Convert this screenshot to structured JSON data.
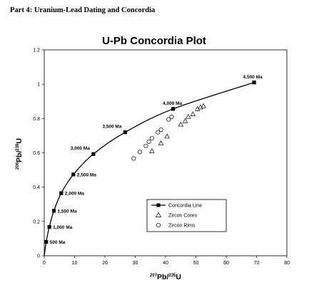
{
  "page": {
    "heading": "Part 4: Uranium-Lead Dating and Concordia"
  },
  "chart_data": {
    "type": "scatter",
    "title": "U-Pb Concordia Plot",
    "xlabel": {
      "base1": "207",
      "mid": "Pb/",
      "base2": "235",
      "end": "U"
    },
    "ylabel": {
      "base1": "206",
      "mid": "Pb/",
      "base2": "238",
      "end": "U"
    },
    "xlim": [
      0,
      80
    ],
    "ylim": [
      0,
      1.2
    ],
    "xticks": [
      "0",
      "10",
      "20",
      "30",
      "40",
      "50",
      "60",
      "70",
      "80"
    ],
    "yticks": [
      "0",
      "0.2",
      "0.4",
      "0.6",
      "0.8",
      "1",
      "1.2"
    ],
    "grid": false,
    "legend_position": "lower-right",
    "colors": {
      "line": "#000000",
      "marker": "#000000",
      "open_marker": "#555555"
    },
    "series": [
      {
        "name": "Concordia Line",
        "style": "line-square",
        "points": [
          {
            "label": "500 Ma",
            "x": 0.64,
            "y": 0.081
          },
          {
            "label": "1,000 Ma",
            "x": 1.68,
            "y": 0.168
          },
          {
            "label": "1,500 Ma",
            "x": 3.18,
            "y": 0.262
          },
          {
            "label": "2,000 Ma",
            "x": 5.6,
            "y": 0.365
          },
          {
            "label": "2,500 Ma",
            "x": 9.6,
            "y": 0.474
          },
          {
            "label": "3,000 Ma",
            "x": 16.2,
            "y": 0.593
          },
          {
            "label": "3,500 Ma",
            "x": 26.7,
            "y": 0.72
          },
          {
            "label": "4,000 Ma",
            "x": 42.5,
            "y": 0.856
          },
          {
            "label": "4,500 Ma",
            "x": 69.2,
            "y": 1.01
          }
        ]
      },
      {
        "name": "Zircon Cores",
        "style": "open-triangle",
        "points": [
          {
            "x": 35.5,
            "y": 0.61
          },
          {
            "x": 38.5,
            "y": 0.655
          },
          {
            "x": 40.5,
            "y": 0.695
          },
          {
            "x": 45.0,
            "y": 0.765
          },
          {
            "x": 46.5,
            "y": 0.785
          },
          {
            "x": 47.5,
            "y": 0.81
          },
          {
            "x": 49.0,
            "y": 0.825
          },
          {
            "x": 50.5,
            "y": 0.855
          },
          {
            "x": 51.5,
            "y": 0.865
          },
          {
            "x": 52.5,
            "y": 0.872
          }
        ]
      },
      {
        "name": "Zircon Rims",
        "style": "open-circle",
        "points": [
          {
            "x": 29.5,
            "y": 0.567
          },
          {
            "x": 31.5,
            "y": 0.605
          },
          {
            "x": 33.5,
            "y": 0.64
          },
          {
            "x": 34.5,
            "y": 0.665
          },
          {
            "x": 35.5,
            "y": 0.685
          },
          {
            "x": 37.5,
            "y": 0.72
          },
          {
            "x": 38.5,
            "y": 0.735
          },
          {
            "x": 41.0,
            "y": 0.795
          },
          {
            "x": 42.0,
            "y": 0.81
          }
        ]
      }
    ]
  }
}
